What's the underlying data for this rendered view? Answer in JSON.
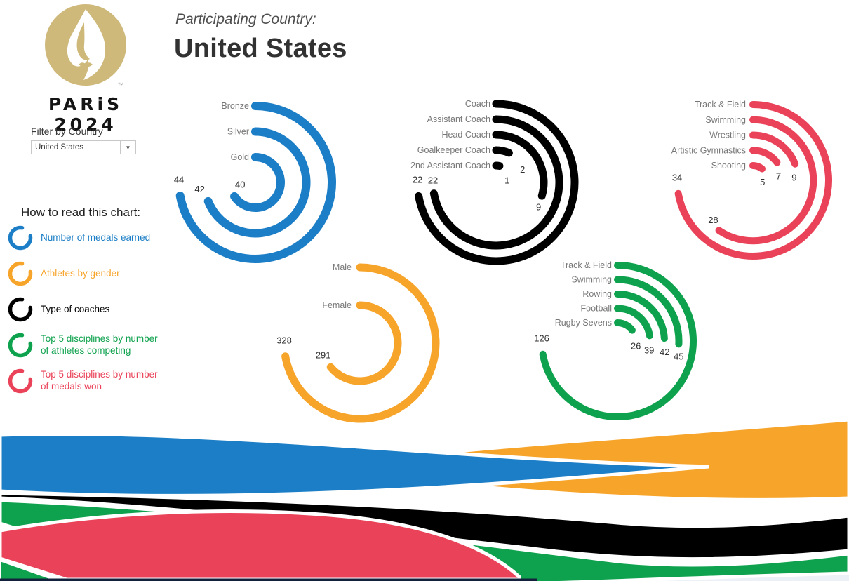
{
  "header": {
    "subtitle": "Participating Country:",
    "title": "United States"
  },
  "sidebar": {
    "logo_text": "PARiS 2024",
    "logo_tm": "™",
    "filter_label": "Filter by Country",
    "filter_value": "United States",
    "legend_title": "How to read this chart:",
    "legend": [
      {
        "color_name": "blue",
        "label": "Number of medals earned"
      },
      {
        "color_name": "yellow",
        "label": "Athletes by gender"
      },
      {
        "color_name": "black",
        "label": "Type of coaches"
      },
      {
        "color_name": "green",
        "label": "Top 5 disciplines by number of athletes competing"
      },
      {
        "color_name": "red",
        "label": "Top 5 disciplines by number of medals won"
      }
    ]
  },
  "colors": {
    "blue": "#1b7ec6",
    "yellow": "#F7A42A",
    "black": "#000000",
    "green": "#0FA24E",
    "red": "#EA4258",
    "gold": "#CEB97B",
    "navy": "#14213d",
    "lightstrip": "#ECF1F8"
  },
  "chart_data": [
    {
      "type": "radial-bar",
      "id": "medals",
      "color": "blue",
      "title": "Number of medals earned",
      "max_sweep_deg": 260,
      "series": [
        {
          "label": "Bronze",
          "value": 44
        },
        {
          "label": "Silver",
          "value": 42
        },
        {
          "label": "Gold",
          "value": 40
        }
      ]
    },
    {
      "type": "radial-bar",
      "id": "coaches",
      "color": "black",
      "title": "Type of coaches",
      "max_sweep_deg": 260,
      "series": [
        {
          "label": "Coach",
          "value": 22
        },
        {
          "label": "Assistant Coach",
          "value": 22
        },
        {
          "label": "Head Coach",
          "value": 9
        },
        {
          "label": "Goalkeeper Coach",
          "value": 2
        },
        {
          "label": "2nd Assistant Coach",
          "value": 1
        }
      ]
    },
    {
      "type": "radial-bar",
      "id": "medal_disciplines",
      "color": "red",
      "title": "Top 5 disciplines by number of medals won",
      "max_sweep_deg": 260,
      "series": [
        {
          "label": "Track & Field",
          "value": 34
        },
        {
          "label": "Swimming",
          "value": 28
        },
        {
          "label": "Wrestling",
          "value": 9
        },
        {
          "label": "Artistic Gymnastics",
          "value": 7
        },
        {
          "label": "Shooting",
          "value": 5
        }
      ]
    },
    {
      "type": "radial-bar",
      "id": "gender",
      "color": "yellow",
      "title": "Athletes by gender",
      "max_sweep_deg": 260,
      "series": [
        {
          "label": "Male",
          "value": 328
        },
        {
          "label": "Female",
          "value": 291
        }
      ]
    },
    {
      "type": "radial-bar",
      "id": "athlete_disciplines",
      "color": "green",
      "title": "Top 5 disciplines by number of athletes competing",
      "max_sweep_deg": 260,
      "series": [
        {
          "label": "Track & Field",
          "value": 126
        },
        {
          "label": "Swimming",
          "value": 45
        },
        {
          "label": "Rowing",
          "value": 42
        },
        {
          "label": "Football",
          "value": 39
        },
        {
          "label": "Rugby Sevens",
          "value": 26
        }
      ]
    }
  ]
}
